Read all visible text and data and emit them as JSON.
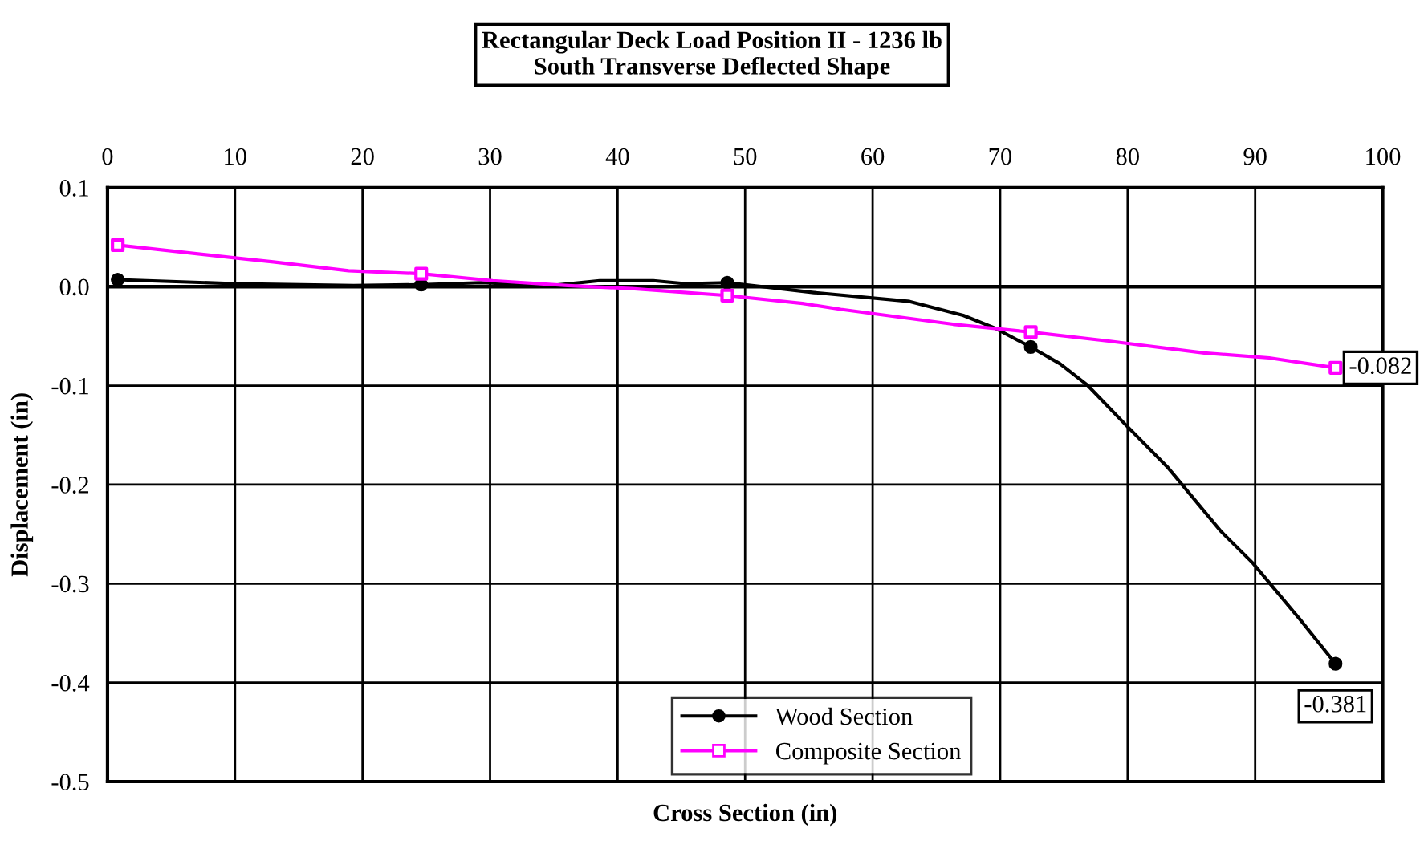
{
  "chart_data": {
    "type": "line",
    "title": "Rectangular Deck Load Position II - 1236 lb\nSouth Transverse Deflected Shape",
    "xlabel": "Cross Section (in)",
    "ylabel": "Displacement (in)",
    "xlim": [
      0,
      100
    ],
    "xticks": [
      0,
      10,
      20,
      30,
      40,
      50,
      60,
      70,
      80,
      90,
      100
    ],
    "ylim": [
      -0.5,
      0.1
    ],
    "yticks": [
      {
        "value": -0.5,
        "label": "-0.5"
      },
      {
        "value": -0.4,
        "label": "-0.4"
      },
      {
        "value": -0.3,
        "label": "-0.3"
      },
      {
        "value": -0.2,
        "label": "-0.2"
      },
      {
        "value": -0.1,
        "label": "-0.1"
      },
      {
        "value": 0,
        "label": "0.0"
      },
      {
        "value": 0.1,
        "label": "0.1"
      }
    ],
    "grid": true,
    "legend": "bottom",
    "line_style": "solid",
    "series": [
      {
        "name": "Wood Section",
        "color": "#000000",
        "marker": "none",
        "x": [
          0.8,
          10,
          19.3,
          24.6,
          29.3,
          34.8,
          38.6,
          42.8,
          45.3,
          48.6,
          55.4,
          62.9,
          67.1,
          69.6,
          72.4,
          74.7,
          76.8,
          79.8,
          83.1,
          87.3,
          89.8,
          93.5,
          96.3
        ],
        "values": [
          0.007,
          0.003,
          0.001,
          0.002,
          0.004,
          0.001,
          0.006,
          0.006,
          0.003,
          0.004,
          -0.006,
          -0.015,
          -0.029,
          -0.042,
          -0.061,
          -0.078,
          -0.099,
          -0.139,
          -0.182,
          -0.247,
          -0.279,
          -0.336,
          -0.381
        ],
        "value_labels": [
          null,
          null,
          null,
          null,
          null,
          null,
          null,
          null,
          null,
          null,
          null,
          null,
          null,
          null,
          null,
          null,
          null,
          null,
          null,
          null,
          null,
          null,
          "-0.381"
        ]
      },
      {
        "type": "scatter",
        "color": "#000000",
        "marker": "circle",
        "x": [
          0.8,
          24.6,
          48.6,
          72.4,
          96.3
        ],
        "values": [
          0.007,
          0.002,
          0.004,
          -0.061,
          -0.381
        ]
      },
      {
        "name": "Composite Section",
        "color": "#ff00ff",
        "marker": "none",
        "x": [
          0.8,
          10,
          13,
          18.9,
          24.6,
          30.2,
          36.1,
          41.1,
          48.6,
          54.5,
          57.5,
          66.3,
          72.4,
          78.5,
          86,
          91.1,
          96.3
        ],
        "values": [
          0.042,
          0.029,
          0.025,
          0.016,
          0.013,
          0.006,
          0.001,
          -0.002,
          -0.009,
          -0.017,
          -0.023,
          -0.038,
          -0.046,
          -0.055,
          -0.067,
          -0.072,
          -0.082
        ],
        "value_labels": [
          null,
          null,
          null,
          null,
          null,
          null,
          null,
          null,
          null,
          null,
          null,
          null,
          null,
          null,
          null,
          null,
          "-0.082"
        ]
      },
      {
        "type": "scatter",
        "color": "#ff00ff",
        "marker": "square",
        "x": [
          0.8,
          24.6,
          48.6,
          72.4,
          96.3
        ],
        "values": [
          0.042,
          0.013,
          -0.009,
          -0.046,
          -0.082
        ]
      }
    ]
  }
}
